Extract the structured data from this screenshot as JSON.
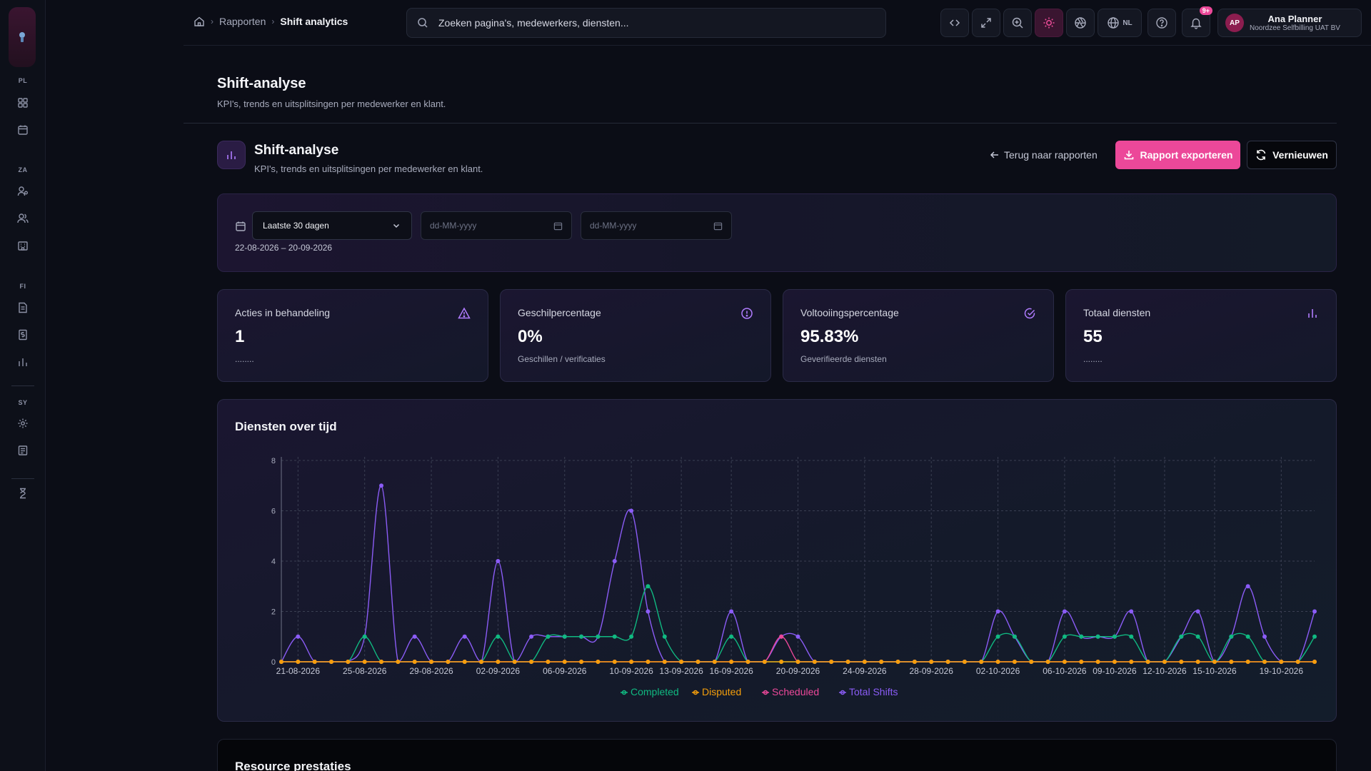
{
  "sidebar": {
    "sections": [
      "PL",
      "ZA",
      "FI",
      "SY"
    ]
  },
  "breadcrumb": {
    "items": [
      "Rapporten",
      "Shift analytics"
    ]
  },
  "search": {
    "placeholder": "Zoeken pagina's, medewerkers, diensten..."
  },
  "topbar": {
    "language": "NL",
    "notifications_badge": "9+"
  },
  "user": {
    "initials": "AP",
    "name": "Ana Planner",
    "org": "Noordzee Selfbilling UAT BV"
  },
  "page": {
    "title": "Shift-analyse",
    "subtitle": "KPI's, trends en uitsplitsingen per medewerker en klant."
  },
  "section": {
    "title": "Shift-analyse",
    "subtitle": "KPI's, trends en uitsplitsingen per medewerker en klant.",
    "back_label": "Terug naar rapporten",
    "export_label": "Rapport exporteren",
    "refresh_label": "Vernieuwen"
  },
  "filter": {
    "period": "Laatste 30 dagen",
    "date_placeholder": "dd-MM-yyyy",
    "range": "22-08-2026 – 20-09-2026"
  },
  "kpis": [
    {
      "label": "Acties in behandeling",
      "value": "1",
      "note": "........",
      "icon": "alert-triangle-icon"
    },
    {
      "label": "Geschilpercentage",
      "value": "0%",
      "note": "Geschillen / verificaties",
      "icon": "alert-circle-icon"
    },
    {
      "label": "Voltooiingspercentage",
      "value": "95.83%",
      "note": "Geverifieerde diensten",
      "icon": "check-circle-icon"
    },
    {
      "label": "Totaal diensten",
      "value": "55",
      "note": "........",
      "icon": "bar-chart-icon"
    }
  ],
  "chart": {
    "title": "Diensten over tijd"
  },
  "chart_data": {
    "type": "line",
    "title": "Diensten over tijd",
    "xlabel": "",
    "ylabel": "",
    "ylim": [
      0,
      8
    ],
    "yticks": [
      0,
      2,
      4,
      6,
      8
    ],
    "grid": true,
    "legend": "bottom",
    "start_date": "21-08-2026",
    "x_labels": [
      "21-08-2026",
      "25-08-2026",
      "29-08-2026",
      "02-09-2026",
      "06-09-2026",
      "10-09-2026",
      "13-09-2026",
      "16-09-2026",
      "20-09-2026",
      "24-09-2026",
      "28-09-2026",
      "02-10-2026",
      "06-10-2026",
      "09-10-2026",
      "12-10-2026",
      "15-10-2026",
      "19-10-2026"
    ],
    "series": [
      {
        "name": "Completed",
        "color": "#10b981",
        "values": [
          0,
          0,
          0,
          0,
          0,
          1,
          0,
          0,
          0,
          0,
          0,
          0,
          0,
          1,
          0,
          0,
          1,
          1,
          1,
          1,
          1,
          1,
          3,
          1,
          0,
          0,
          0,
          1,
          0,
          0,
          0,
          0,
          0,
          0,
          0,
          0,
          0,
          0,
          0,
          0,
          0,
          0,
          0,
          1,
          1,
          0,
          0,
          1,
          1,
          1,
          1,
          1,
          0,
          0,
          1,
          1,
          0,
          1,
          1,
          0,
          0,
          0,
          1
        ]
      },
      {
        "name": "Disputed",
        "color": "#f59e0b",
        "values": [
          0,
          0,
          0,
          0,
          0,
          0,
          0,
          0,
          0,
          0,
          0,
          0,
          0,
          0,
          0,
          0,
          0,
          0,
          0,
          0,
          0,
          0,
          0,
          0,
          0,
          0,
          0,
          0,
          0,
          0,
          0,
          0,
          0,
          0,
          0,
          0,
          0,
          0,
          0,
          0,
          0,
          0,
          0,
          0,
          0,
          0,
          0,
          0,
          0,
          0,
          0,
          0,
          0,
          0,
          0,
          0,
          0,
          0,
          0,
          0,
          0,
          0,
          0
        ]
      },
      {
        "name": "Scheduled",
        "color": "#ec4899",
        "values": [
          0,
          0,
          0,
          0,
          0,
          0,
          0,
          0,
          0,
          0,
          0,
          0,
          0,
          0,
          0,
          0,
          0,
          0,
          0,
          0,
          0,
          0,
          0,
          0,
          0,
          0,
          0,
          0,
          0,
          0,
          1,
          0,
          0,
          0,
          0,
          0,
          0,
          0,
          0,
          0,
          0,
          0,
          0,
          0,
          0,
          0,
          0,
          0,
          0,
          0,
          0,
          0,
          0,
          0,
          0,
          0,
          0,
          0,
          0,
          0,
          0,
          0,
          0
        ]
      },
      {
        "name": "Total Shifts",
        "color": "#8b5cf6",
        "values": [
          0,
          1,
          0,
          0,
          0,
          1,
          7,
          0,
          1,
          0,
          0,
          1,
          0,
          4,
          0,
          1,
          1,
          1,
          1,
          1,
          4,
          6,
          2,
          0,
          0,
          0,
          0,
          2,
          0,
          0,
          1,
          1,
          0,
          0,
          0,
          0,
          0,
          0,
          0,
          0,
          0,
          0,
          0,
          2,
          1,
          0,
          0,
          2,
          1,
          1,
          1,
          2,
          0,
          0,
          1,
          2,
          0,
          1,
          3,
          1,
          0,
          0,
          2
        ]
      }
    ]
  },
  "resources": {
    "title": "Resource prestaties"
  }
}
